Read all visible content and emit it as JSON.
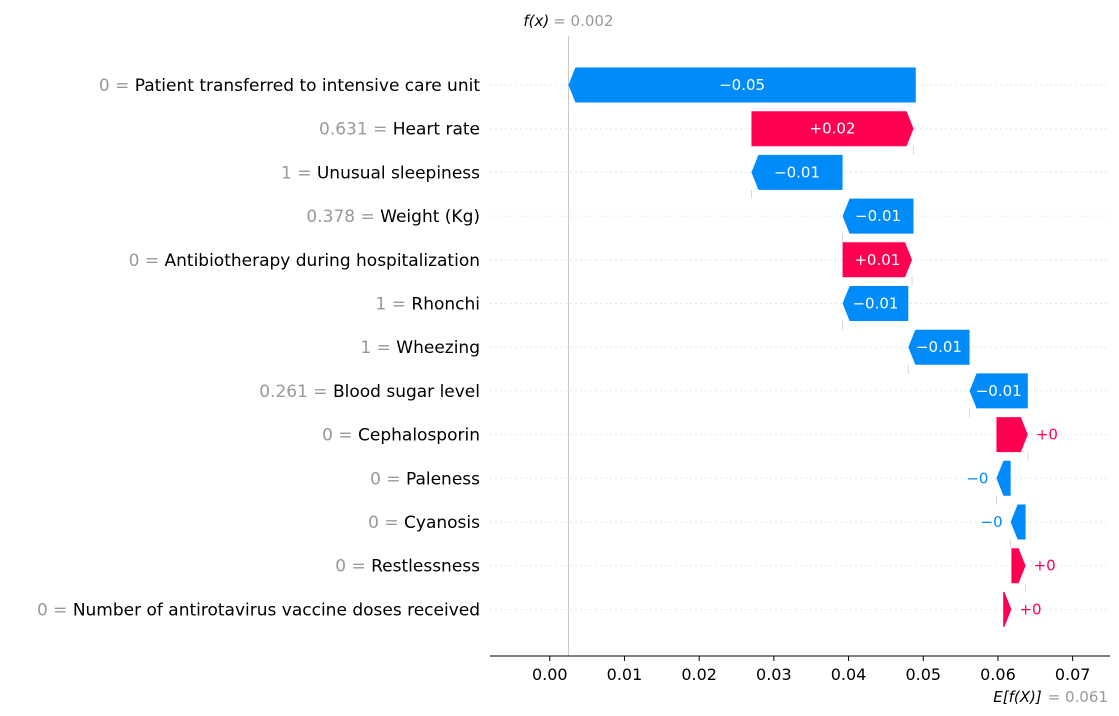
{
  "chart_data": {
    "type": "waterfall",
    "title": "",
    "xlabel": "",
    "ylabel": "",
    "xlim": [
      -0.008,
      0.075
    ],
    "xticks": [
      0.0,
      0.01,
      0.02,
      0.03,
      0.04,
      0.05,
      0.06,
      0.07
    ],
    "xtick_labels": [
      "0.00",
      "0.01",
      "0.02",
      "0.03",
      "0.04",
      "0.05",
      "0.06",
      "0.07"
    ],
    "fx": {
      "label": "f(x)",
      "value_text": "= 0.002",
      "value": 0.0025
    },
    "efx": {
      "label": "E[f(X)]",
      "value_text": "= 0.061",
      "value": 0.061
    },
    "positive_color": "#ff0051",
    "negative_color": "#008bfb",
    "features": [
      {
        "value": "0",
        "name": "Patient transferred to intensive care unit",
        "start": 0.049,
        "end": 0.0025,
        "label": "−0.05"
      },
      {
        "value": "0.631",
        "name": "Heart rate",
        "start": 0.027,
        "end": 0.0487,
        "label": "+0.02"
      },
      {
        "value": "1",
        "name": "Unusual sleepiness",
        "start": 0.0392,
        "end": 0.027,
        "label": "−0.01"
      },
      {
        "value": "0.378",
        "name": "Weight (Kg)",
        "start": 0.0487,
        "end": 0.0392,
        "label": "−0.01"
      },
      {
        "value": "0",
        "name": "Antibiotherapy during hospitalization",
        "start": 0.0392,
        "end": 0.0485,
        "label": "+0.01"
      },
      {
        "value": "1",
        "name": "Rhonchi",
        "start": 0.048,
        "end": 0.0392,
        "label": "−0.01"
      },
      {
        "value": "1",
        "name": "Wheezing",
        "start": 0.0562,
        "end": 0.048,
        "label": "−0.01"
      },
      {
        "value": "0.261",
        "name": "Blood sugar level",
        "start": 0.064,
        "end": 0.0562,
        "label": "−0.01"
      },
      {
        "value": "0",
        "name": "Cephalosporin",
        "start": 0.0598,
        "end": 0.064,
        "label": "+0"
      },
      {
        "value": "0",
        "name": "Paleness",
        "start": 0.0617,
        "end": 0.0598,
        "label": "−0"
      },
      {
        "value": "0",
        "name": "Cyanosis",
        "start": 0.0637,
        "end": 0.0617,
        "label": "−0"
      },
      {
        "value": "0",
        "name": "Restlessness",
        "start": 0.0618,
        "end": 0.0637,
        "label": "+0"
      },
      {
        "value": "0",
        "name": "Number of antirotavirus vaccine doses received",
        "start": 0.0607,
        "end": 0.0618,
        "label": "+0"
      }
    ]
  }
}
